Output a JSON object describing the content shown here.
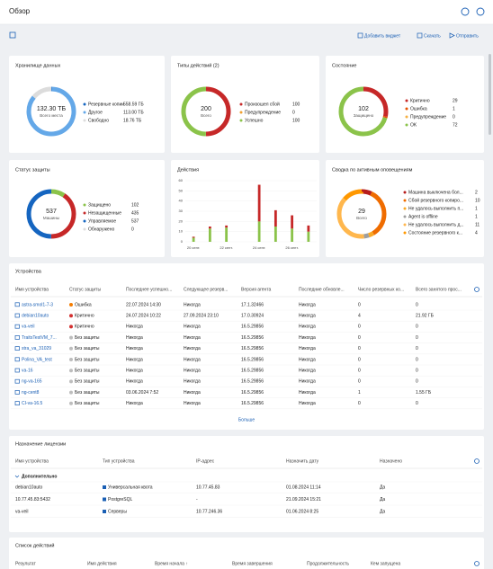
{
  "header": {
    "title": "Обзор"
  },
  "toolbar": {
    "add_widget": "Добавить виджет",
    "download": "Скачать",
    "send": "Отправить"
  },
  "widgets": [
    {
      "title": "Хранилище данных",
      "center_value": "132.30 ТБ",
      "center_label": "Всего места",
      "items": [
        {
          "label": "Резервные копии",
          "value": 0.55859,
          "value_label": "558.59 ГБ",
          "color": "#1565c0"
        },
        {
          "label": "Другое",
          "value": 113.0,
          "value_label": "113.00 ТБ",
          "color": "#64a8e8"
        },
        {
          "label": "Свободно",
          "value": 18.76,
          "value_label": "18.76 ТБ",
          "color": "#dcdcdc"
        }
      ]
    },
    {
      "title": "Типы действий (2)",
      "center_value": "200",
      "center_label": "Всего",
      "items": [
        {
          "label": "Произошел сбой",
          "value": 100,
          "color": "#c62828"
        },
        {
          "label": "Предупреждение",
          "value": 0,
          "color": "#f0a030"
        },
        {
          "label": "Успешно",
          "value": 100,
          "color": "#8bc34a"
        }
      ]
    },
    {
      "title": "Состояние",
      "center_value": "102",
      "center_label": "Защищено",
      "items": [
        {
          "label": "Критично",
          "value": 29,
          "color": "#c62828"
        },
        {
          "label": "Ошибка",
          "value": 1,
          "color": "#e65100"
        },
        {
          "label": "Предупреждение",
          "value": 0,
          "color": "#f5b041"
        },
        {
          "label": "OK",
          "value": 72,
          "color": "#8bc34a"
        }
      ]
    },
    {
      "title": "Статус защиты",
      "center_value": "537",
      "center_label": "Машины",
      "items": [
        {
          "label": "Защищено",
          "value": 102,
          "color": "#8bc34a"
        },
        {
          "label": "Незащищенные",
          "value": 435,
          "color": "#c62828"
        },
        {
          "label": "Управляемое",
          "value": 537,
          "color": "#1565c0"
        },
        {
          "label": "Обнаружено",
          "value": 0,
          "color": "#dcdcdc"
        }
      ]
    },
    {
      "title": "Сводка по активным оповещениям",
      "center_value": "29",
      "center_label": "Всего",
      "items": [
        {
          "label": "Машина выключена бол...",
          "value": 2,
          "color": "#b71c1c"
        },
        {
          "label": "Сбой резервного копиро...",
          "value": 10,
          "color": "#ef6c00"
        },
        {
          "label": "Не удалось выполнить п...",
          "value": 1,
          "color": "#f9a825"
        },
        {
          "label": "Agent is offline",
          "value": 1,
          "color": "#9e9e9e"
        },
        {
          "label": "Не удалось выполнить д...",
          "value": 11,
          "color": "#ffb74d"
        },
        {
          "label": "Состояние резервного к...",
          "value": 4,
          "color": "#ff9800"
        }
      ]
    }
  ],
  "chart_data": {
    "type": "bar",
    "title": "Действия",
    "categories": [
      "20 сент.",
      null,
      "22 сент.",
      null,
      "24 сент.",
      null,
      "26 сент.",
      null
    ],
    "series": [
      {
        "color": "#8bc34a",
        "values": [
          4,
          13,
          14,
          0,
          20,
          15,
          13,
          10
        ]
      },
      {
        "color": "#c62828",
        "values": [
          1,
          2,
          2,
          0,
          36,
          16,
          13,
          6
        ]
      }
    ],
    "ylim": [
      0,
      60
    ],
    "yticks": [
      0,
      10,
      20,
      30,
      40,
      50,
      60
    ]
  },
  "devices": {
    "title": "Устройства",
    "columns": [
      "Имя устройства",
      "Статус защиты",
      "Последнее успешно...",
      "Следующее резерв...",
      "Версия агента",
      "Последние обновле...",
      "Число резервных ко...",
      "Всего занятого прос..."
    ],
    "status_colors": [
      "#f57c00",
      "#d32f2f",
      "#d32f2f",
      "#bdbdbd",
      "#bdbdbd",
      "#bdbdbd",
      "#bdbdbd",
      "#bdbdbd",
      "#bdbdbd",
      "#bdbdbd"
    ],
    "rows": [
      [
        "astra-smol1-7-3",
        "Ошибка",
        "22.07.2024 14:30",
        "Никогда",
        "17.1.32466",
        "Никогда",
        "0",
        "0"
      ],
      [
        "debian10auto",
        "Критично",
        "24.07.2024 10:22",
        "27.09.2024 23:10",
        "17.0.30924",
        "Никогда",
        "4",
        "21.92 ГБ"
      ],
      [
        "va-veil",
        "Критично",
        "Никогда",
        "Никогда",
        "16.5.29856",
        "Никогда",
        "0",
        "0"
      ],
      [
        "TraitsTestVM_7...",
        "Без защиты",
        "Никогда",
        "Никогда",
        "16.5.29856",
        "Никогда",
        "0",
        "0"
      ],
      [
        "stra_va_31029",
        "Без защиты",
        "Никогда",
        "Никогда",
        "16.5.29856",
        "Никогда",
        "0",
        "0"
      ],
      [
        "Polina_VA_test",
        "Без защиты",
        "Никогда",
        "Никогда",
        "16.5.29856",
        "Никогда",
        "0",
        "0"
      ],
      [
        "va-16",
        "Без защиты",
        "Никогда",
        "Никогда",
        "16.5.29856",
        "Никогда",
        "0",
        "0"
      ],
      [
        "ng-va-165",
        "Без защиты",
        "Никогда",
        "Никогда",
        "16.5.29856",
        "Никогда",
        "0",
        "0"
      ],
      [
        "ng-cent8",
        "Без защиты",
        "03.06.2024 7:52",
        "Никогда",
        "16.5.29856",
        "Никогда",
        "1",
        "1.55 ГБ"
      ],
      [
        "CI-va-16.5",
        "Без защиты",
        "Никогда",
        "Никогда",
        "16.5.29856",
        "Никогда",
        "0",
        "0"
      ]
    ],
    "more": "Больше"
  },
  "licenses": {
    "title": "Назначение лицензии",
    "columns": [
      "Имя устройства",
      "Тип устройства",
      "IP-адрес",
      "Назначить дату",
      "Назначено"
    ],
    "group": "Дополнительно",
    "rows": [
      [
        "debian10auto",
        "Универсальная квота",
        "10.77.45.83",
        "01.08.2024 11:14",
        "Да"
      ],
      [
        "10.77.45.83:5432",
        "PostgreSQL",
        "-",
        "21.09.2024 15:21",
        "Да"
      ],
      [
        "va-veil",
        "Серверы",
        "10.77.246.36",
        "01.06.2024 8:25",
        "Да"
      ]
    ]
  },
  "activities": {
    "title": "Список действий",
    "columns": [
      "Результат",
      "Имя действия",
      "Время начала ↑",
      "Время завершения",
      "Продолжительность",
      "Кем запущена"
    ]
  }
}
